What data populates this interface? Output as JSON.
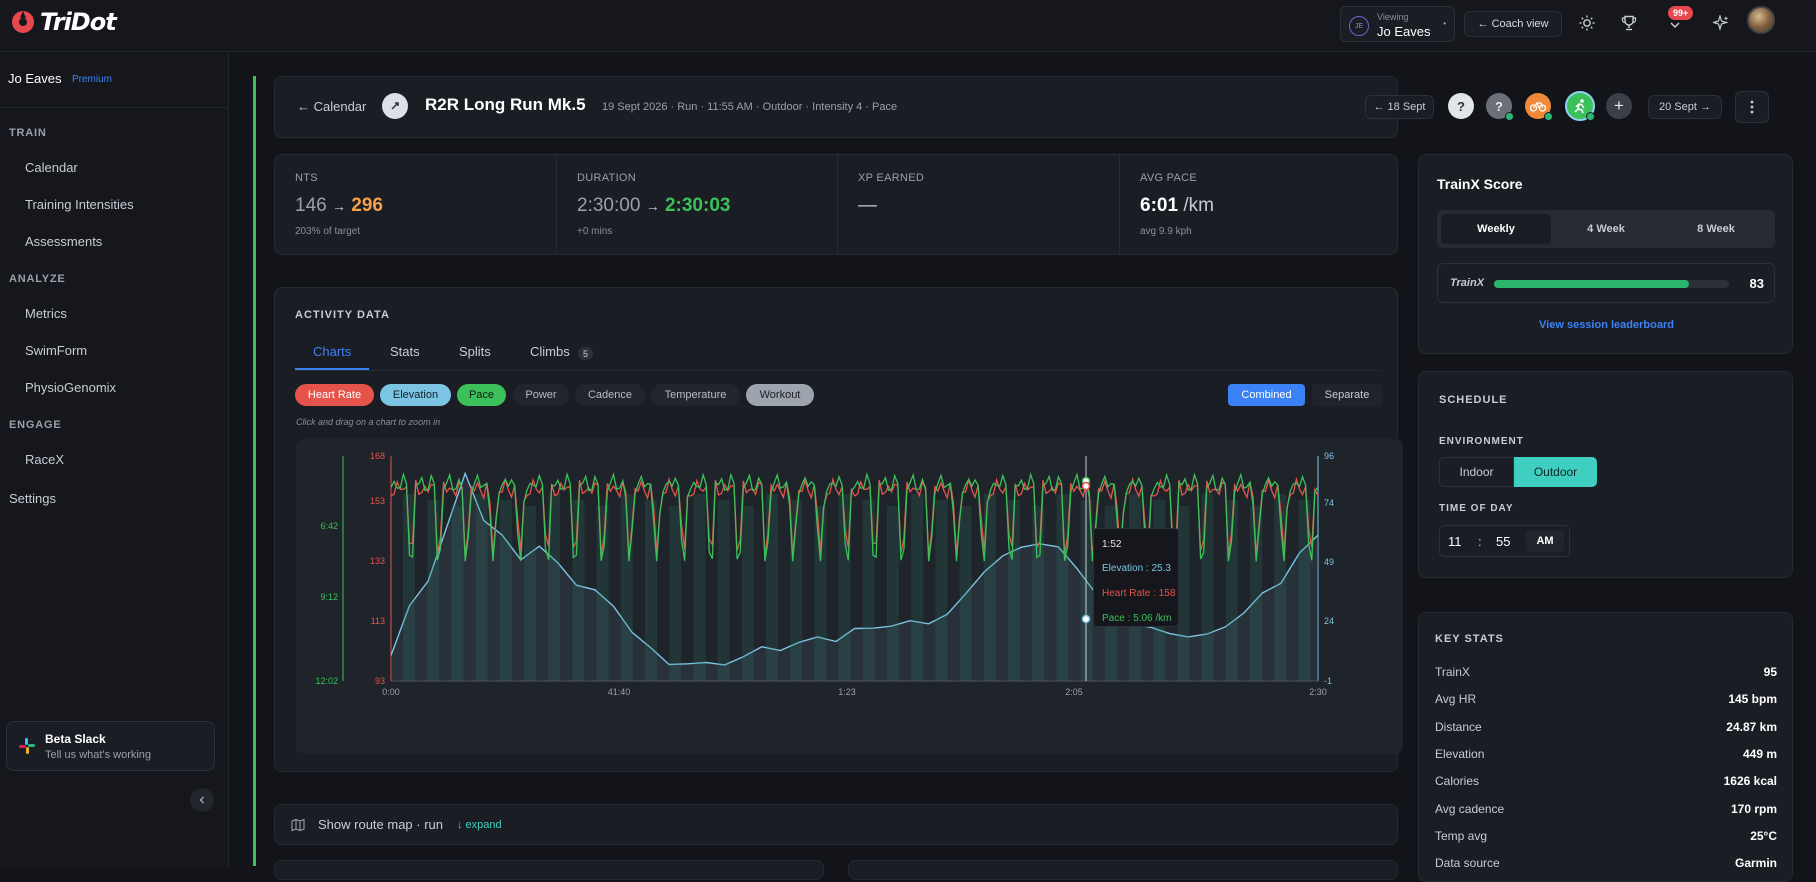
{
  "app": {
    "logo": "TriDot"
  },
  "topbar": {
    "viewing_label": "Viewing",
    "viewing_name": "Jo Eaves",
    "viewing_initials": "JE",
    "coach_view": "← Coach view",
    "notifications_badge": "99+"
  },
  "sidebar": {
    "user": "Jo Eaves",
    "plan": "Premium",
    "sections": [
      {
        "title": "TRAIN",
        "items": [
          "Calendar",
          "Training Intensities",
          "Assessments"
        ]
      },
      {
        "title": "ANALYZE",
        "items": [
          "Metrics",
          "SwimForm",
          "PhysioGenomix"
        ]
      },
      {
        "title": "ENGAGE",
        "items": [
          "RaceX"
        ]
      }
    ],
    "settings": "Settings",
    "beta_title": "Beta Slack",
    "beta_sub": "Tell us what's working"
  },
  "session": {
    "back": "← Calendar",
    "title": "R2R Long Run Mk.5",
    "meta": "19 Sept 2026 · Run · 11:55 AM · Outdoor · Intensity 4 · Pace",
    "prev": "← 18 Sept",
    "next": "20 Sept →"
  },
  "stats": {
    "nts": {
      "label": "NTS",
      "from": "146",
      "arrow": "→",
      "to": "296",
      "sub": "203% of target"
    },
    "duration": {
      "label": "DURATION",
      "from": "2:30:00",
      "arrow": "→",
      "to": "2:30:03",
      "sub": "+0 mins"
    },
    "xp": {
      "label": "XP EARNED",
      "value": "—"
    },
    "pace": {
      "label": "AVG PACE",
      "value": "6:01",
      "unit": "/km",
      "sub": "avg 9.9 kph"
    }
  },
  "activity": {
    "title": "ACTIVITY DATA",
    "tabs": [
      "Charts",
      "Stats",
      "Splits",
      "Climbs"
    ],
    "climbs_count": "5",
    "chips": [
      "Heart Rate",
      "Elevation",
      "Pace",
      "Power",
      "Cadence",
      "Temperature",
      "Workout"
    ],
    "mode_combined": "Combined",
    "mode_separate": "Separate",
    "hint": "Click and drag on a chart to zoom in",
    "route": "Show route map · run",
    "expand": "↓ expand"
  },
  "chart_data": {
    "type": "line",
    "x_ticks": [
      "0:00",
      "41:40",
      "1:23",
      "2:05",
      "2:30"
    ],
    "hr_ticks": [
      "168",
      "153",
      "133",
      "113",
      "93"
    ],
    "pace_ticks": [
      "6:42",
      "9:12",
      "12:02"
    ],
    "elev_ticks": [
      "96",
      "74",
      "49",
      "24",
      "-1"
    ],
    "ylim_hr": [
      93,
      168
    ],
    "ylim_elev": [
      -1,
      96
    ],
    "tooltip": {
      "time": "1:52",
      "elevation": "Elevation : 25.3",
      "heart_rate": "Heart Rate : 158",
      "pace": "Pace : 5:06 /km"
    },
    "series": [
      {
        "name": "Heart Rate",
        "color": "#e5534b"
      },
      {
        "name": "Elevation",
        "color": "#7cc4e4"
      },
      {
        "name": "Pace",
        "color": "#3cc05a"
      }
    ],
    "elevation_profile": [
      10,
      30,
      44,
      64,
      88,
      70,
      60,
      52,
      58,
      48,
      42,
      38,
      30,
      22,
      12,
      6,
      8,
      5,
      7,
      10,
      12,
      14,
      15,
      17,
      18,
      20,
      22,
      24,
      23,
      25,
      28,
      35,
      48,
      52,
      56,
      60,
      55,
      48,
      38,
      30,
      25,
      22,
      18,
      20,
      18,
      22,
      30,
      35,
      42,
      55,
      60
    ]
  },
  "trainx": {
    "title": "TrainX Score",
    "tabs": [
      "Weekly",
      "4 Week",
      "8 Week"
    ],
    "label": "TrainX",
    "score": "83",
    "score_value": 0.83,
    "leaderboard": "View session leaderboard"
  },
  "schedule": {
    "title": "SCHEDULE",
    "env_label": "ENVIRONMENT",
    "indoor": "Indoor",
    "outdoor": "Outdoor",
    "tod_label": "TIME OF DAY",
    "hour": "11",
    "sep": ":",
    "minute": "55",
    "ampm": "AM"
  },
  "key_stats": {
    "title": "KEY STATS",
    "rows": [
      {
        "k": "TrainX",
        "v": "95"
      },
      {
        "k": "Avg HR",
        "v": "145 bpm"
      },
      {
        "k": "Distance",
        "v": "24.87 km"
      },
      {
        "k": "Elevation",
        "v": "449 m"
      },
      {
        "k": "Calories",
        "v": "1626 kcal"
      },
      {
        "k": "Avg cadence",
        "v": "170 rpm"
      },
      {
        "k": "Temp avg",
        "v": "25°C"
      },
      {
        "k": "Data source",
        "v": "Garmin"
      }
    ]
  },
  "colors": {
    "accent": "#3b82f6",
    "green": "#3cc05a",
    "teal": "#3ecfc0",
    "orange": "#f5a04a",
    "red": "#e5534b"
  }
}
